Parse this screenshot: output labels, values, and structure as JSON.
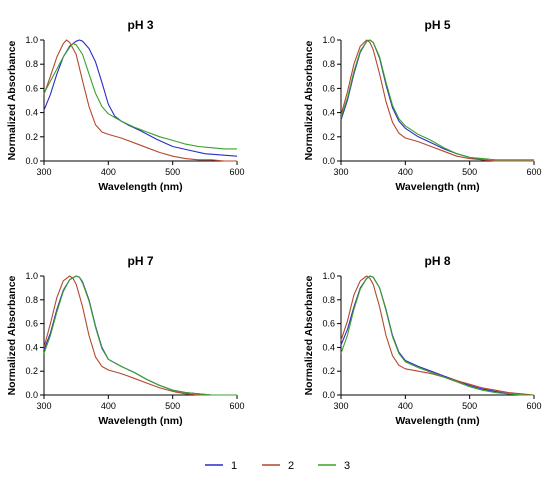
{
  "legend": {
    "position": "bottom-center",
    "items": [
      {
        "label": "1",
        "color": "#2b2bc8"
      },
      {
        "label": "2",
        "color": "#b5472e"
      },
      {
        "label": "3",
        "color": "#3aa02a"
      }
    ]
  },
  "chart_data": [
    {
      "type": "line",
      "title": "pH 3",
      "xlabel": "Wavelength (nm)",
      "ylabel": "Normalized Absorbance",
      "xlim": [
        300,
        600
      ],
      "ylim": [
        0,
        1.0
      ],
      "xticks": [
        "300",
        "400",
        "500",
        "600"
      ],
      "yticks": [
        "0.0",
        "0.2",
        "0.4",
        "0.6",
        "0.8",
        "1.0"
      ],
      "grid": false,
      "series": [
        {
          "name": "1",
          "color": "#2b2bc8",
          "x": [
            300,
            310,
            320,
            330,
            340,
            350,
            355,
            360,
            370,
            380,
            390,
            400,
            410,
            420,
            430,
            450,
            475,
            500,
            525,
            550,
            575,
            600
          ],
          "y": [
            0.42,
            0.55,
            0.72,
            0.86,
            0.95,
            0.99,
            1.0,
            0.99,
            0.93,
            0.82,
            0.65,
            0.47,
            0.37,
            0.33,
            0.3,
            0.25,
            0.18,
            0.12,
            0.09,
            0.06,
            0.05,
            0.04
          ]
        },
        {
          "name": "2",
          "color": "#b5472e",
          "x": [
            300,
            310,
            320,
            330,
            335,
            340,
            350,
            360,
            370,
            380,
            390,
            400,
            420,
            440,
            460,
            480,
            500,
            520,
            540,
            560,
            580,
            600
          ],
          "y": [
            0.55,
            0.7,
            0.86,
            0.97,
            1.0,
            0.98,
            0.88,
            0.66,
            0.45,
            0.3,
            0.24,
            0.22,
            0.19,
            0.15,
            0.11,
            0.07,
            0.04,
            0.02,
            0.01,
            0.01,
            0.0,
            0.0
          ]
        },
        {
          "name": "3",
          "color": "#3aa02a",
          "x": [
            300,
            310,
            320,
            330,
            340,
            345,
            350,
            360,
            370,
            380,
            390,
            400,
            420,
            440,
            460,
            480,
            500,
            520,
            540,
            560,
            580,
            600
          ],
          "y": [
            0.56,
            0.66,
            0.76,
            0.86,
            0.94,
            0.97,
            0.96,
            0.88,
            0.72,
            0.56,
            0.45,
            0.39,
            0.33,
            0.28,
            0.24,
            0.2,
            0.17,
            0.14,
            0.12,
            0.11,
            0.1,
            0.1
          ]
        }
      ]
    },
    {
      "type": "line",
      "title": "pH 5",
      "xlabel": "Wavelength (nm)",
      "ylabel": "Normalized Absorbance",
      "xlim": [
        300,
        600
      ],
      "ylim": [
        0,
        1.0
      ],
      "xticks": [
        "300",
        "400",
        "500",
        "600"
      ],
      "yticks": [
        "0.0",
        "0.2",
        "0.4",
        "0.6",
        "0.8",
        "1.0"
      ],
      "grid": false,
      "series": [
        {
          "name": "1",
          "color": "#2b2bc8",
          "x": [
            300,
            310,
            320,
            330,
            340,
            345,
            350,
            360,
            370,
            380,
            390,
            400,
            420,
            440,
            460,
            480,
            500,
            520,
            540,
            560,
            580,
            600
          ],
          "y": [
            0.34,
            0.5,
            0.72,
            0.9,
            0.99,
            1.0,
            0.98,
            0.85,
            0.63,
            0.44,
            0.33,
            0.27,
            0.2,
            0.15,
            0.1,
            0.06,
            0.03,
            0.01,
            0.0,
            0.0,
            0.0,
            0.0
          ]
        },
        {
          "name": "2",
          "color": "#b5472e",
          "x": [
            300,
            310,
            320,
            330,
            340,
            345,
            350,
            360,
            370,
            380,
            390,
            400,
            420,
            440,
            460,
            480,
            500,
            520,
            540,
            560,
            580,
            600
          ],
          "y": [
            0.38,
            0.57,
            0.8,
            0.95,
            1.0,
            0.98,
            0.92,
            0.72,
            0.49,
            0.32,
            0.23,
            0.19,
            0.16,
            0.12,
            0.08,
            0.04,
            0.02,
            0.01,
            0.0,
            0.0,
            0.0,
            0.0
          ]
        },
        {
          "name": "3",
          "color": "#3aa02a",
          "x": [
            300,
            310,
            320,
            330,
            340,
            345,
            350,
            360,
            370,
            380,
            390,
            400,
            420,
            440,
            460,
            480,
            500,
            520,
            540,
            560,
            580,
            600
          ],
          "y": [
            0.36,
            0.52,
            0.74,
            0.91,
            0.99,
            1.0,
            0.98,
            0.86,
            0.65,
            0.46,
            0.35,
            0.29,
            0.22,
            0.17,
            0.11,
            0.06,
            0.03,
            0.02,
            0.01,
            0.01,
            0.01,
            0.01
          ]
        }
      ]
    },
    {
      "type": "line",
      "title": "pH 7",
      "xlabel": "Wavelength (nm)",
      "ylabel": "Normalized Absorbance",
      "xlim": [
        300,
        600
      ],
      "ylim": [
        0,
        1.0
      ],
      "xticks": [
        "300",
        "400",
        "500",
        "600"
      ],
      "yticks": [
        "0.0",
        "0.2",
        "0.4",
        "0.6",
        "0.8",
        "1.0"
      ],
      "grid": false,
      "series": [
        {
          "name": "1",
          "color": "#2b2bc8",
          "x": [
            300,
            310,
            320,
            330,
            340,
            350,
            355,
            360,
            370,
            380,
            390,
            400,
            420,
            440,
            460,
            480,
            500,
            520,
            540,
            560,
            580,
            600
          ],
          "y": [
            0.38,
            0.52,
            0.72,
            0.88,
            0.97,
            1.0,
            0.99,
            0.95,
            0.8,
            0.58,
            0.4,
            0.3,
            0.24,
            0.19,
            0.13,
            0.08,
            0.04,
            0.02,
            0.01,
            0.0,
            0.0,
            0.0
          ]
        },
        {
          "name": "2",
          "color": "#b5472e",
          "x": [
            300,
            310,
            320,
            330,
            340,
            345,
            350,
            360,
            370,
            380,
            390,
            400,
            420,
            440,
            460,
            480,
            500,
            520,
            540,
            560,
            580,
            600
          ],
          "y": [
            0.4,
            0.6,
            0.82,
            0.96,
            1.0,
            0.98,
            0.93,
            0.74,
            0.5,
            0.32,
            0.24,
            0.21,
            0.18,
            0.14,
            0.1,
            0.06,
            0.03,
            0.01,
            0.0,
            0.0,
            0.0,
            0.0
          ]
        },
        {
          "name": "3",
          "color": "#3aa02a",
          "x": [
            300,
            310,
            320,
            330,
            340,
            350,
            355,
            360,
            370,
            380,
            390,
            400,
            420,
            440,
            460,
            480,
            500,
            520,
            540,
            560,
            580,
            600
          ],
          "y": [
            0.35,
            0.5,
            0.7,
            0.87,
            0.97,
            1.0,
            0.99,
            0.94,
            0.79,
            0.57,
            0.39,
            0.3,
            0.24,
            0.19,
            0.13,
            0.08,
            0.04,
            0.02,
            0.01,
            0.0,
            0.0,
            0.0
          ]
        }
      ]
    },
    {
      "type": "line",
      "title": "pH 8",
      "xlabel": "Wavelength (nm)",
      "ylabel": "Normalized Absorbance",
      "xlim": [
        300,
        600
      ],
      "ylim": [
        0,
        1.0
      ],
      "xticks": [
        "300",
        "400",
        "500",
        "600"
      ],
      "yticks": [
        "0.0",
        "0.2",
        "0.4",
        "0.6",
        "0.8",
        "1.0"
      ],
      "grid": false,
      "series": [
        {
          "name": "1",
          "color": "#2b2bc8",
          "x": [
            300,
            310,
            320,
            330,
            340,
            345,
            350,
            360,
            370,
            380,
            390,
            400,
            420,
            440,
            460,
            480,
            500,
            520,
            540,
            560,
            580,
            600
          ],
          "y": [
            0.42,
            0.55,
            0.74,
            0.9,
            0.98,
            1.0,
            0.99,
            0.9,
            0.72,
            0.5,
            0.36,
            0.29,
            0.24,
            0.2,
            0.16,
            0.12,
            0.08,
            0.05,
            0.03,
            0.01,
            0.0,
            0.0
          ]
        },
        {
          "name": "2",
          "color": "#b5472e",
          "x": [
            300,
            310,
            320,
            330,
            340,
            345,
            350,
            360,
            370,
            380,
            390,
            400,
            420,
            440,
            460,
            480,
            500,
            520,
            540,
            560,
            580,
            600
          ],
          "y": [
            0.46,
            0.62,
            0.84,
            0.96,
            1.0,
            0.98,
            0.93,
            0.74,
            0.5,
            0.33,
            0.25,
            0.22,
            0.2,
            0.18,
            0.15,
            0.12,
            0.09,
            0.06,
            0.04,
            0.02,
            0.01,
            0.0
          ]
        },
        {
          "name": "3",
          "color": "#3aa02a",
          "x": [
            300,
            310,
            320,
            330,
            340,
            345,
            350,
            360,
            370,
            380,
            390,
            400,
            420,
            440,
            460,
            480,
            500,
            520,
            540,
            560,
            580,
            600
          ],
          "y": [
            0.35,
            0.5,
            0.72,
            0.89,
            0.98,
            1.0,
            0.99,
            0.9,
            0.71,
            0.49,
            0.35,
            0.28,
            0.23,
            0.19,
            0.15,
            0.11,
            0.07,
            0.04,
            0.02,
            0.01,
            0.0,
            0.0
          ]
        }
      ]
    }
  ]
}
